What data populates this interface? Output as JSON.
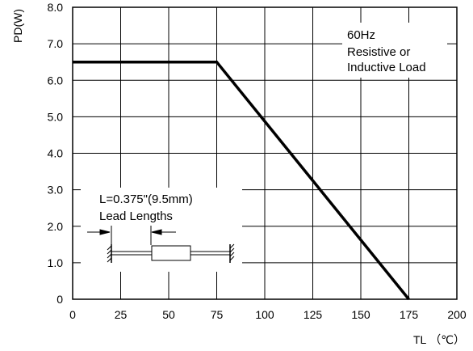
{
  "chart_data": {
    "type": "line",
    "title": "",
    "xlabel": "TL （℃）",
    "ylabel": "PD(W)",
    "xlim": [
      0,
      200
    ],
    "ylim": [
      0,
      8
    ],
    "grid": true,
    "x_ticks": [
      "0",
      "25",
      "50",
      "75",
      "100",
      "125",
      "150",
      "175",
      "200"
    ],
    "y_ticks": [
      "0",
      "1.0",
      "2.0",
      "3.0",
      "4.0",
      "5.0",
      "6.0",
      "7.0",
      "8.0"
    ],
    "series": [
      {
        "x": [
          0,
          75,
          175
        ],
        "y": [
          6.5,
          6.5,
          0
        ]
      }
    ],
    "annotations": {
      "freq": "60Hz",
      "load_line1": "Resistive or",
      "load_line2": "Inductive Load",
      "lead_line1": "L=0.375\"(9.5mm)",
      "lead_line2": "Lead Lengths"
    }
  }
}
